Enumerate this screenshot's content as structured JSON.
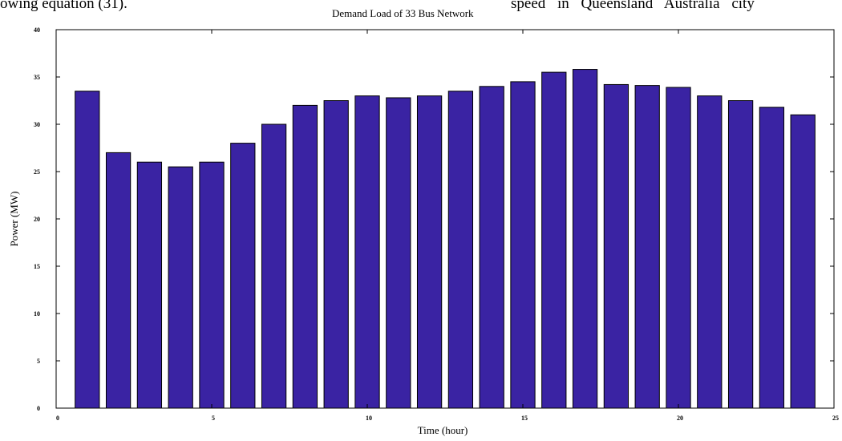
{
  "page_text": {
    "left_fragment": "owing equation (31).",
    "right_fragment": "speed  in  Queensland Australia  city"
  },
  "chart_data": {
    "type": "bar",
    "title": "Demand Load of 33 Bus Network",
    "xlabel": "Time (hour)",
    "ylabel": "Power (MW)",
    "x": [
      1,
      2,
      3,
      4,
      5,
      6,
      7,
      8,
      9,
      10,
      11,
      12,
      13,
      14,
      15,
      16,
      17,
      18,
      19,
      20,
      21,
      22,
      23,
      24
    ],
    "values": [
      33.5,
      27.0,
      26.0,
      25.5,
      26.0,
      28.0,
      30.0,
      32.0,
      32.5,
      33.0,
      32.8,
      33.0,
      33.5,
      34.0,
      34.5,
      35.5,
      35.8,
      34.2,
      34.1,
      33.9,
      33.0,
      32.5,
      31.8,
      31.0
    ],
    "xlim": [
      0,
      25
    ],
    "ylim": [
      0,
      40
    ],
    "xticks": [
      0,
      5,
      10,
      15,
      20,
      25
    ],
    "xtick_labels": [
      "0",
      "5",
      "10",
      "15",
      "20",
      "25"
    ],
    "yticks": [
      0,
      5,
      10,
      15,
      20,
      25,
      30,
      35,
      40
    ],
    "ytick_labels": [
      "0",
      "5",
      "10",
      "15",
      "20",
      "25",
      "30",
      "35",
      "40"
    ],
    "bar_color": "#3a23a3",
    "grid": false,
    "legend": "none"
  }
}
